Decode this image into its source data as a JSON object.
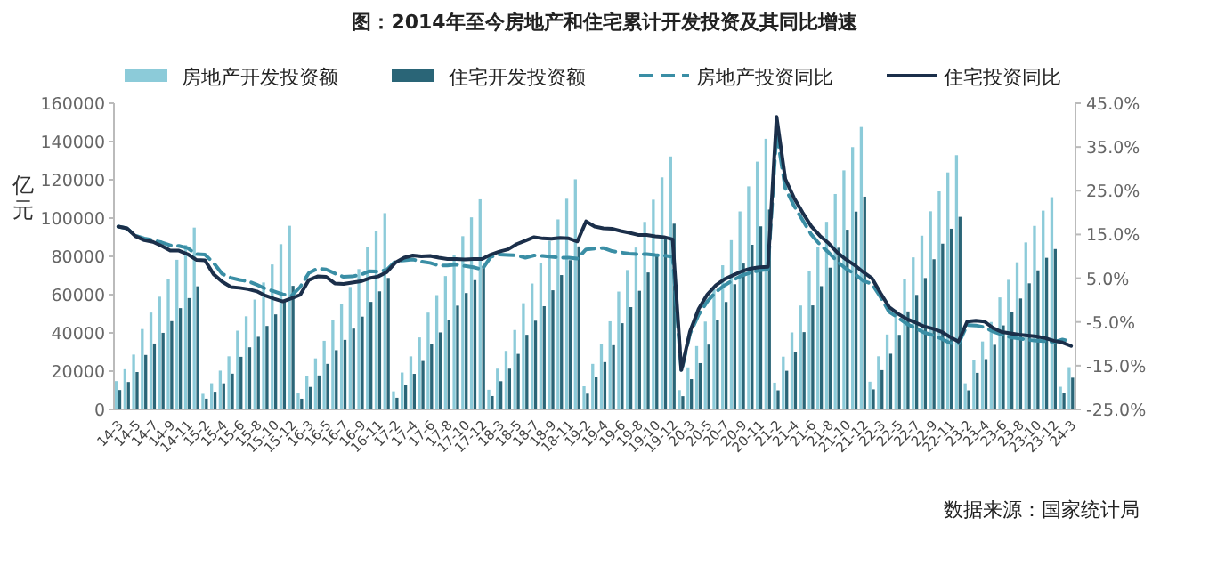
{
  "chart_data": {
    "type": "bar",
    "title": "图：2014年至今房地产和住宅累计开发投资及其同比增速",
    "ylabel": "亿元",
    "legend": "top",
    "grid": false,
    "categories": [
      "14-3",
      null,
      "14-5",
      null,
      "14-7",
      null,
      "14-9",
      null,
      "14-11",
      null,
      "15-2",
      null,
      "15-4",
      null,
      "15-6",
      null,
      "15-8",
      null,
      "15-10",
      null,
      "15-12",
      null,
      "16-3",
      null,
      "16-5",
      null,
      "16-7",
      null,
      "16-9",
      null,
      "16-11",
      null,
      "17-2",
      null,
      "17-4",
      null,
      "17-6",
      null,
      "17-8",
      null,
      "17-10",
      null,
      "17-12",
      null,
      "18-3",
      null,
      "18-5",
      null,
      "18-7",
      null,
      "18-9",
      null,
      "18-11",
      null,
      "19-2",
      null,
      "19-4",
      null,
      "19-6",
      null,
      "19-8",
      null,
      "19-10",
      null,
      "19-12",
      null,
      "20-3",
      null,
      "20-5",
      null,
      "20-7",
      null,
      "20-9",
      null,
      "20-11",
      null,
      "21-2",
      null,
      "21-4",
      null,
      "21-6",
      null,
      "21-8",
      null,
      "21-10",
      null,
      "21-12",
      null,
      "22-3",
      null,
      "22-5",
      null,
      "22-7",
      null,
      "22-9",
      null,
      "22-11",
      null,
      "23-2",
      null,
      "23-4",
      null,
      "23-6",
      null,
      "23-8",
      null,
      "23-10",
      null,
      "23-12",
      null,
      "24-3"
    ],
    "ylim": [
      0,
      160000
    ],
    "yticks": [
      0,
      20000,
      40000,
      60000,
      80000,
      100000,
      120000,
      140000,
      160000
    ],
    "y2lim": [
      -25,
      45
    ],
    "y2ticks": [
      {
        "value": -25,
        "label": "-25.0%"
      },
      {
        "value": -15,
        "label": "-15.0%"
      },
      {
        "value": -5,
        "label": "-5.0%"
      },
      {
        "value": 5,
        "label": "5.0%"
      },
      {
        "value": 15,
        "label": "15.0%"
      },
      {
        "value": 25,
        "label": "25.0%"
      },
      {
        "value": 35,
        "label": "35.0%"
      },
      {
        "value": 45,
        "label": "45.0%"
      }
    ],
    "series": [
      {
        "name": "房地产开发投资额",
        "color": "#8ccbd9",
        "values": [
          14806,
          21009,
          28658,
          42019,
          50631,
          58922,
          67948,
          78186,
          85956,
          95036,
          8166,
          13695,
          20259,
          27756,
          41155,
          48683,
          57409,
          66340,
          75747,
          86355,
          95979,
          8364,
          17677,
          26663,
          35856,
          46631,
          55040,
          64000,
          73346,
          85000,
          93387,
          102581,
          9478,
          19292,
          27732,
          37623,
          50610,
          59761,
          69694,
          80644,
          90544,
          100387,
          109799,
          10292,
          21292,
          30592,
          41504,
          55531,
          65800,
          76519,
          88115,
          99325,
          110083,
          120264,
          12090,
          23803,
          34217,
          46075,
          61609,
          72843,
          84589,
          98008,
          109603,
          121265,
          132194,
          10115,
          21963,
          33103,
          45920,
          62780,
          75325,
          88454,
          103484,
          116556,
          129492,
          141443,
          13986,
          27576,
          40240,
          54318,
          72179,
          84895,
          98060,
          112568,
          124934,
          137086,
          147602,
          14499,
          27765,
          39154,
          52134,
          68314,
          79462,
          90809,
          103559,
          113945,
          123863,
          132895,
          13669,
          25974,
          35514,
          45701,
          58550,
          67717,
          76900,
          87269,
          95922,
          103913,
          110913,
          11842,
          22082
        ]
      },
      {
        "name": "住宅开发投资额",
        "color": "#2a6577",
        "values": [
          10154,
          14338,
          19530,
          28465,
          34441,
          40024,
          46141,
          52959,
          58199,
          64352,
          5617,
          9257,
          13636,
          18681,
          27489,
          32468,
          37947,
          43633,
          49679,
          56616,
          64595,
          5599,
          11760,
          17737,
          23799,
          30956,
          36340,
          42246,
          48509,
          56215,
          61734,
          68704,
          6082,
          12832,
          18588,
          25314,
          34126,
          40248,
          46827,
          54250,
          60837,
          67554,
          75148,
          6988,
          14740,
          21281,
          29020,
          39001,
          46381,
          53957,
          62283,
          70208,
          78007,
          85192,
          8236,
          17064,
          24723,
          33569,
          45065,
          53476,
          62019,
          71566,
          80458,
          89011,
          97071,
          6922,
          15803,
          24201,
          33870,
          46513,
          56164,
          65454,
          76246,
          86051,
          95698,
          104446,
          9994,
          20181,
          29784,
          40404,
          54383,
          64434,
          74081,
          84486,
          93926,
          103380,
          111173,
          10493,
          20513,
          29093,
          38967,
          51228,
          59855,
          68662,
          78484,
          86627,
          94442,
          100646,
          9987,
          19113,
          26264,
          33761,
          43916,
          50934,
          57982,
          65895,
          72676,
          79238,
          83820,
          8829,
          16585
        ]
      },
      {
        "name": "房地产投资同比",
        "type": "line",
        "axis": "y2",
        "color": "#3a8ea5",
        "line_style": "dashed",
        "values": [
          16.8,
          16.4,
          14.7,
          14.1,
          13.7,
          13.2,
          12.5,
          12.4,
          11.9,
          10.5,
          10.4,
          8.5,
          6.0,
          5.1,
          4.6,
          4.3,
          3.5,
          2.6,
          2.0,
          1.3,
          1.0,
          3.0,
          6.2,
          7.2,
          7.0,
          6.1,
          5.3,
          5.4,
          5.8,
          6.6,
          6.5,
          6.9,
          8.9,
          9.1,
          9.3,
          8.8,
          8.5,
          7.9,
          7.9,
          8.1,
          7.8,
          7.5,
          7.0,
          9.9,
          10.4,
          10.3,
          10.2,
          9.7,
          10.2,
          10.1,
          9.9,
          9.7,
          9.7,
          9.5,
          11.6,
          11.8,
          11.9,
          11.2,
          10.9,
          10.6,
          10.5,
          10.5,
          10.3,
          10.2,
          9.9,
          -16.3,
          -7.7,
          -3.3,
          -0.3,
          1.9,
          3.4,
          4.6,
          5.6,
          6.3,
          6.8,
          7.0,
          38.3,
          25.6,
          21.6,
          18.3,
          15.0,
          12.7,
          10.9,
          8.8,
          7.2,
          6.0,
          4.4,
          3.7,
          0.7,
          -2.7,
          -4.0,
          -5.4,
          -6.4,
          -7.4,
          -8.0,
          -8.8,
          -9.8,
          -10.0,
          -5.7,
          -5.8,
          -6.2,
          -7.2,
          -7.9,
          -8.5,
          -8.8,
          -9.1,
          -9.3,
          -9.4,
          -9.6,
          -9.0,
          -9.5
        ]
      },
      {
        "name": "住宅投资同比",
        "type": "line",
        "axis": "y2",
        "color": "#1b2f4a",
        "line_style": "solid",
        "values": [
          16.8,
          16.4,
          14.6,
          13.7,
          13.3,
          12.4,
          11.3,
          11.3,
          10.5,
          9.2,
          9.1,
          5.9,
          4.2,
          3.0,
          2.8,
          2.5,
          2.0,
          1.0,
          0.3,
          -0.3,
          0.4,
          1.2,
          4.6,
          5.4,
          5.3,
          3.8,
          3.7,
          4.0,
          4.3,
          5.0,
          5.4,
          6.4,
          8.6,
          9.7,
          10.2,
          10.0,
          10.1,
          9.7,
          9.4,
          9.4,
          9.3,
          9.4,
          9.4,
          10.4,
          11.1,
          11.6,
          12.8,
          13.6,
          14.4,
          14.1,
          14.0,
          14.2,
          14.1,
          13.4,
          18.0,
          16.8,
          16.4,
          16.3,
          15.8,
          15.4,
          14.9,
          14.9,
          14.6,
          14.4,
          13.9,
          -16.0,
          -7.2,
          -2.0,
          1.3,
          3.4,
          4.8,
          5.7,
          6.6,
          7.2,
          7.5,
          7.6,
          41.9,
          27.7,
          23.4,
          20.0,
          16.9,
          14.7,
          13.0,
          10.9,
          9.3,
          8.0,
          6.4,
          5.0,
          1.6,
          -1.6,
          -3.1,
          -4.3,
          -5.1,
          -6.0,
          -6.5,
          -7.2,
          -8.4,
          -9.5,
          -4.9,
          -4.7,
          -4.9,
          -6.4,
          -7.3,
          -7.6,
          -7.9,
          -8.1,
          -8.3,
          -8.7,
          -9.3,
          -9.7,
          -10.5
        ]
      }
    ],
    "annotations": [
      "数据来源：国家统计局"
    ]
  }
}
